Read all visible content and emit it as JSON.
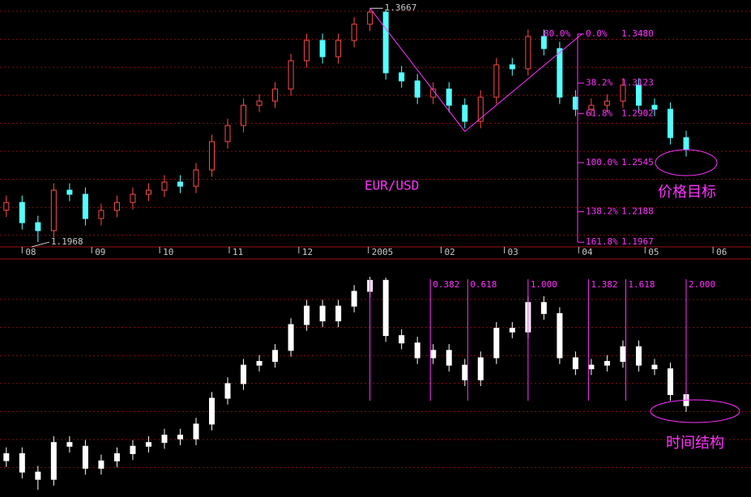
{
  "chart_data": {
    "type": "candlestick",
    "title": "EUR/USD",
    "open": [
      1.22,
      1.2256,
      1.2109,
      1.2051,
      1.2345,
      1.2315,
      1.2139,
      1.2198,
      1.2256,
      1.2315,
      1.2345,
      1.2404,
      1.2374,
      1.2492,
      1.2698,
      1.2815,
      1.2962,
      1.2992,
      1.308,
      1.3286,
      1.3433,
      1.3315,
      1.3433,
      1.3551,
      1.3639,
      1.3198,
      1.3139,
      1.3021,
      1.308,
      1.2962,
      1.2845,
      1.3021,
      1.3256,
      1.3227,
      1.3462,
      1.3374,
      1.3021,
      1.2933,
      1.2962,
      1.2992,
      1.3109,
      1.2962,
      1.2933,
      1.2727
    ],
    "high": [
      1.2306,
      1.2306,
      1.2159,
      1.2395,
      1.2395,
      1.2365,
      1.2248,
      1.2306,
      1.2365,
      1.2395,
      1.2454,
      1.2454,
      1.2542,
      1.2748,
      1.2865,
      1.3012,
      1.3042,
      1.313,
      1.3336,
      1.3483,
      1.3483,
      1.3483,
      1.3601,
      1.3667,
      1.366,
      1.3248,
      1.3189,
      1.313,
      1.313,
      1.3012,
      1.3071,
      1.3306,
      1.3306,
      1.3512,
      1.3512,
      1.3424,
      1.3071,
      1.3012,
      1.3042,
      1.3159,
      1.3159,
      1.3012,
      1.2983,
      1.2777
    ],
    "low": [
      1.215,
      1.2059,
      1.1968,
      1.2001,
      1.2265,
      1.2089,
      1.2089,
      1.2148,
      1.2206,
      1.2265,
      1.2295,
      1.2324,
      1.2324,
      1.2442,
      1.2648,
      1.2765,
      1.2912,
      1.2942,
      1.303,
      1.3236,
      1.3265,
      1.3265,
      1.3383,
      1.3501,
      1.3148,
      1.3089,
      1.2971,
      1.2971,
      1.2912,
      1.2795,
      1.2795,
      1.2971,
      1.3177,
      1.3177,
      1.3324,
      1.2971,
      1.2883,
      1.2883,
      1.2912,
      1.2942,
      1.2912,
      1.2883,
      1.2677,
      1.2589
    ],
    "close": [
      1.2256,
      1.2109,
      1.2051,
      1.2345,
      1.2315,
      1.2139,
      1.2198,
      1.2256,
      1.2315,
      1.2345,
      1.2404,
      1.2374,
      1.2492,
      1.2698,
      1.2815,
      1.2962,
      1.2992,
      1.308,
      1.3286,
      1.3433,
      1.3315,
      1.3433,
      1.3551,
      1.3639,
      1.3198,
      1.3139,
      1.3021,
      1.308,
      1.2962,
      1.2845,
      1.3021,
      1.3256,
      1.3227,
      1.3462,
      1.3374,
      1.3021,
      1.2933,
      1.2962,
      1.2992,
      1.3109,
      1.2962,
      1.2933,
      1.2727,
      1.2639
    ],
    "up_color": "#ff4a4a",
    "down_color": "#54ffff",
    "lower_color": "#ffffff",
    "line_color": "#ff33ff",
    "xlim": [
      -0.4,
      47.1
    ],
    "ylim": [
      1.1933,
      1.3727
    ],
    "lower_ylim": [
      1.1936,
      1.3712
    ],
    "xticks": [
      {
        "value": 1,
        "label": "08"
      },
      {
        "value": 5.4,
        "label": "09"
      },
      {
        "value": 9.7,
        "label": "10"
      },
      {
        "value": 14.1,
        "label": "11"
      },
      {
        "value": 18.5,
        "label": "12"
      },
      {
        "value": 22.9,
        "label": "2005"
      },
      {
        "value": 27.5,
        "label": "02"
      },
      {
        "value": 31.5,
        "label": "03"
      },
      {
        "value": 36.2,
        "label": "04"
      },
      {
        "value": 40.4,
        "label": "05"
      },
      {
        "value": 44.7,
        "label": "06"
      }
    ],
    "peak_label": 1.3667,
    "low_label": 1.1968,
    "fib_levels": [
      {
        "ratio": "0.0%",
        "value": 1.348,
        "label": "1.3480"
      },
      {
        "ratio": "38.2%",
        "value": 1.3123,
        "label": "1.3123"
      },
      {
        "ratio": "61.8%",
        "value": 1.2902,
        "label": "1.2902"
      },
      {
        "ratio": "100.0%",
        "value": 1.2545,
        "label": "1.2545"
      },
      {
        "ratio": "138.2%",
        "value": 1.2188,
        "label": "1.2188"
      },
      {
        "ratio": "161.8%",
        "value": 1.1967,
        "label": "1.1967"
      }
    ],
    "fib_extra_label": "80.0%",
    "time_ratios": [
      {
        "value": 0.382,
        "label": "0.382"
      },
      {
        "value": 0.618,
        "label": "0.618"
      },
      {
        "value": 1,
        "label": "1.000"
      },
      {
        "value": 1.382,
        "label": "1.382"
      },
      {
        "value": 1.618,
        "label": "1.618"
      },
      {
        "value": 2,
        "label": "2.000"
      }
    ],
    "price_target_label": "价格目标",
    "time_structure_label": "时间结构"
  }
}
